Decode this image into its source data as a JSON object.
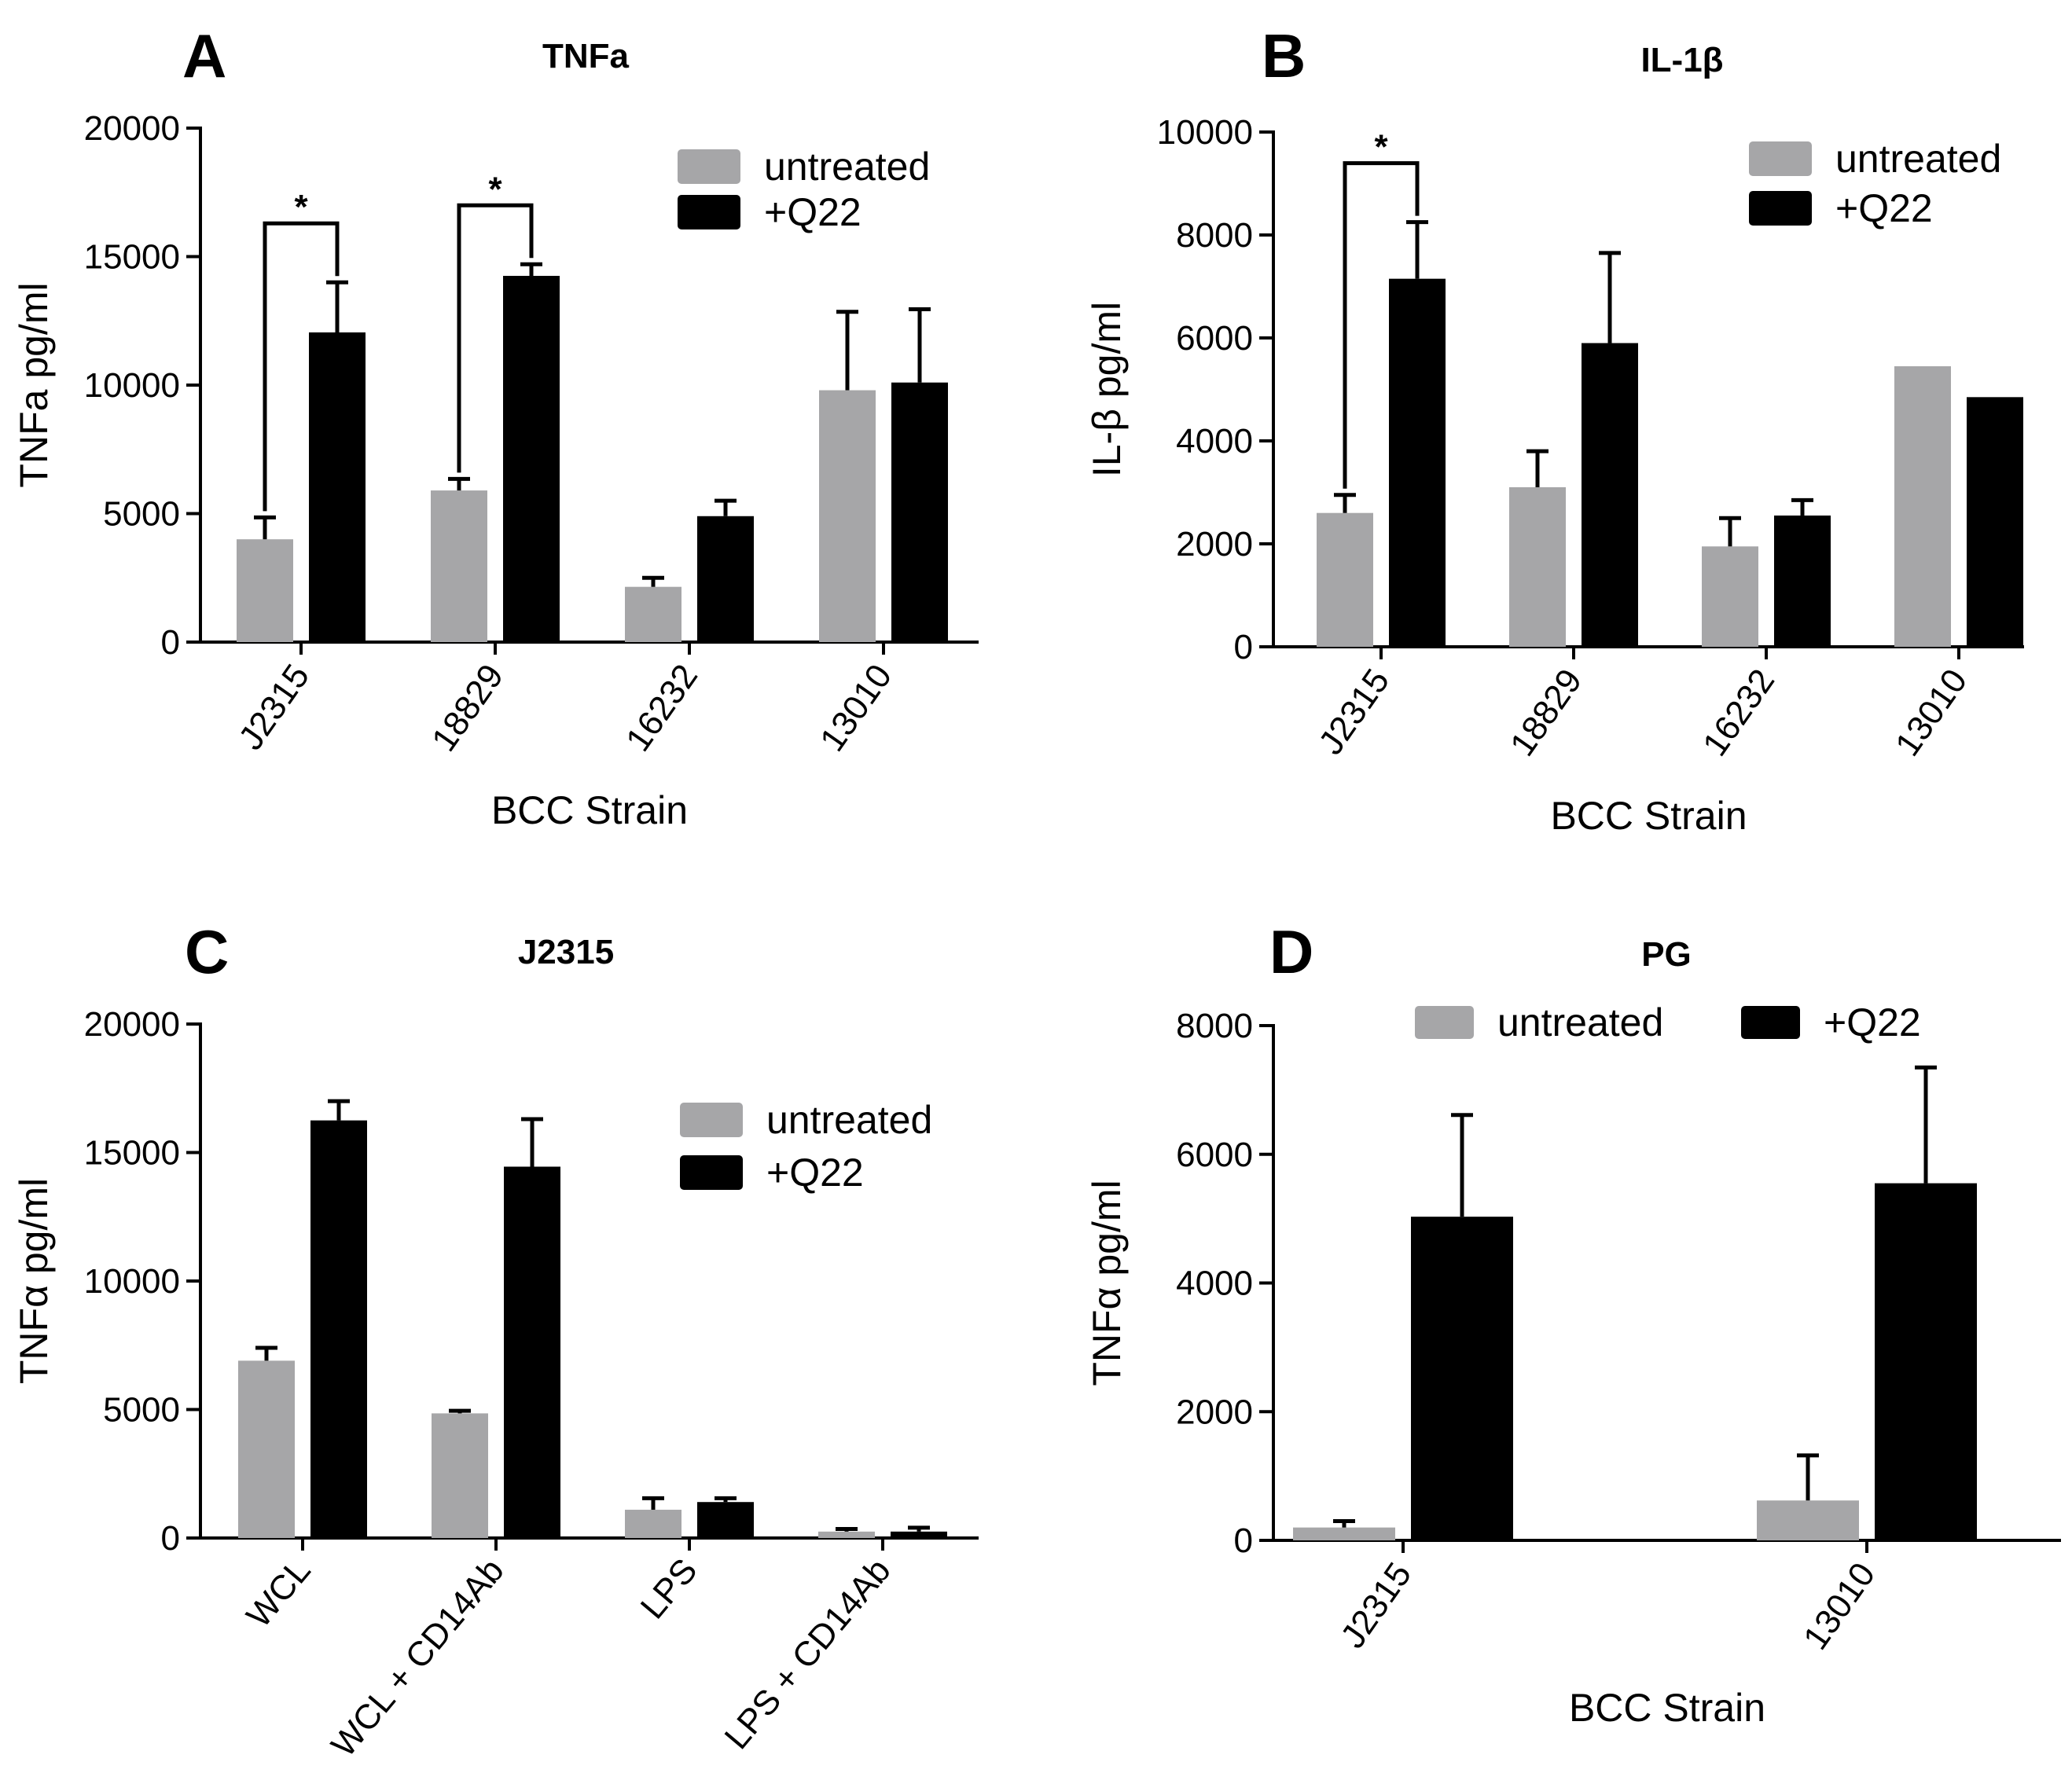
{
  "colors": {
    "untreated": "#a6a6a8",
    "q22": "#000000",
    "axis": "#000000"
  },
  "chart_data": [
    {
      "panel": "A",
      "type": "bar",
      "title": "TNFa",
      "xlabel": "BCC Strain",
      "ylabel": "TNFa pg/ml",
      "ylim": [
        0,
        20000
      ],
      "yticks": [
        0,
        5000,
        10000,
        15000,
        20000
      ],
      "categories": [
        "J2315",
        "18829",
        "16232",
        "13010"
      ],
      "legend_position": "top-right",
      "series": [
        {
          "name": "untreated",
          "values": [
            4000,
            5900,
            2150,
            9800
          ],
          "errors": [
            850,
            450,
            350,
            3050
          ]
        },
        {
          "name": "+Q22",
          "values": [
            12050,
            14250,
            4900,
            10100
          ],
          "errors": [
            1950,
            450,
            600,
            2850
          ]
        }
      ],
      "significance": [
        {
          "category": "J2315",
          "label": "*"
        },
        {
          "category": "18829",
          "label": "*"
        }
      ]
    },
    {
      "panel": "B",
      "type": "bar",
      "title": "IL-1β",
      "xlabel": "BCC Strain",
      "ylabel": "IL-β pg/ml",
      "ylim": [
        0,
        10000
      ],
      "yticks": [
        0,
        2000,
        4000,
        6000,
        8000,
        10000
      ],
      "categories": [
        "J2315",
        "18829",
        "16232",
        "13010"
      ],
      "legend_position": "top-right",
      "series": [
        {
          "name": "untreated",
          "values": [
            2600,
            3100,
            1950,
            5450
          ],
          "errors": [
            350,
            700,
            550,
            0
          ]
        },
        {
          "name": "+Q22",
          "values": [
            7150,
            5900,
            2550,
            4850
          ],
          "errors": [
            1100,
            1750,
            300,
            0
          ]
        }
      ],
      "significance": [
        {
          "category": "J2315",
          "label": "*"
        }
      ]
    },
    {
      "panel": "C",
      "type": "bar",
      "title": "J2315",
      "xlabel": "",
      "ylabel": "TNFα pg/ml",
      "ylim": [
        0,
        20000
      ],
      "yticks": [
        0,
        5000,
        10000,
        15000,
        20000
      ],
      "categories": [
        "WCL",
        "WCL + CD14Ab",
        "LPS",
        "LPS + CD14Ab"
      ],
      "legend_position": "top-right",
      "series": [
        {
          "name": "untreated",
          "values": [
            6900,
            4850,
            1100,
            250
          ],
          "errors": [
            500,
            100,
            450,
            100
          ]
        },
        {
          "name": "+Q22",
          "values": [
            16250,
            14450,
            1400,
            250
          ],
          "errors": [
            750,
            1850,
            150,
            150
          ]
        }
      ],
      "significance": []
    },
    {
      "panel": "D",
      "type": "bar",
      "title": "PG",
      "xlabel": "BCC Strain",
      "ylabel": "TNFα pg/ml",
      "ylim": [
        0,
        8000
      ],
      "yticks": [
        0,
        2000,
        4000,
        6000,
        8000
      ],
      "categories": [
        "J2315",
        "13010"
      ],
      "legend_position": "top",
      "series": [
        {
          "name": "untreated",
          "values": [
            200,
            620
          ],
          "errors": [
            100,
            700
          ]
        },
        {
          "name": "+Q22",
          "values": [
            5030,
            5550
          ],
          "errors": [
            1580,
            1800
          ]
        }
      ],
      "significance": []
    }
  ]
}
